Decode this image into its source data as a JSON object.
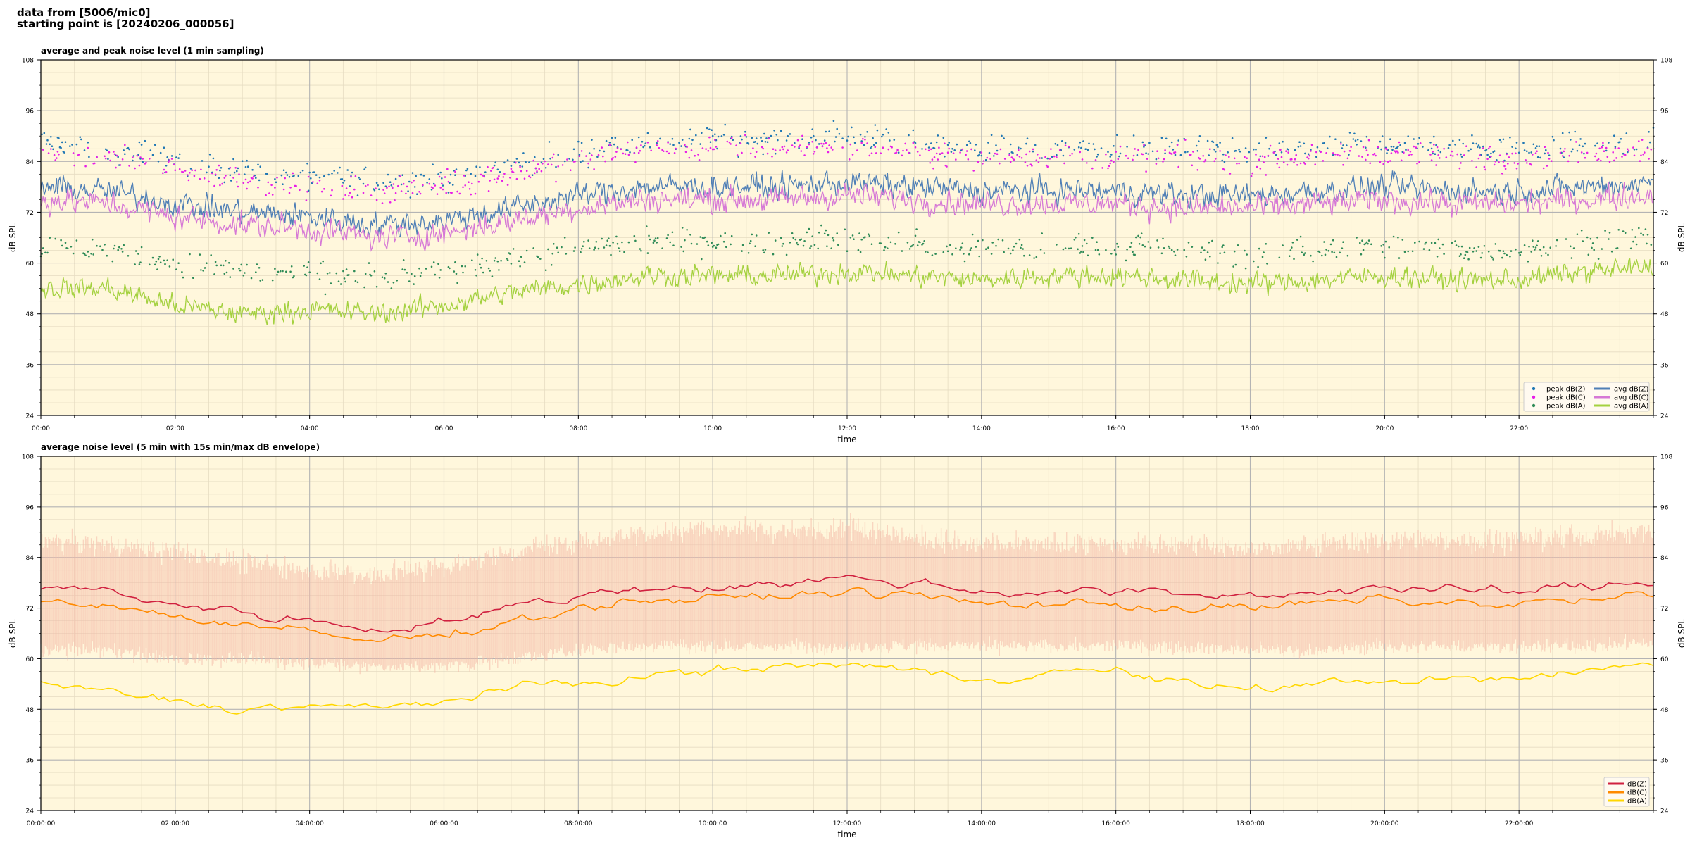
{
  "header": {
    "line1": "data from [5006/mic0]",
    "line2": "starting point is [20240206_000056]"
  },
  "colors": {
    "plot_bg": "#fff7dc",
    "peak_z": "#1f77b4",
    "peak_c": "#e81ee8",
    "peak_a": "#2e8b57",
    "avg_z": "#4f7fb6",
    "avg_c": "#d678d6",
    "avg_a": "#a4d13f",
    "dbz": "#d0203f",
    "dbc": "#ff8a00",
    "dba": "#ffd700",
    "envelope": "#f4b9a8"
  },
  "chart_data": [
    {
      "type": "line",
      "title": "average and peak noise level (1 min sampling)",
      "xlabel": "time",
      "ylabel": "dB SPL",
      "ylim": [
        24,
        108
      ],
      "xlim_hours": [
        0,
        24
      ],
      "y_ticks": [
        "24",
        "36",
        "48",
        "60",
        "72",
        "84",
        "96",
        "108"
      ],
      "x_ticks": [
        "00:00",
        "02:00",
        "04:00",
        "06:00",
        "08:00",
        "10:00",
        "12:00",
        "14:00",
        "16:00",
        "18:00",
        "20:00",
        "22:00"
      ],
      "grid": true,
      "legend_position": "bottom-right",
      "legend": [
        "peak dB(Z)",
        "peak dB(C)",
        "peak dB(A)",
        "avg dB(Z)",
        "avg dB(C)",
        "avg dB(A)"
      ],
      "x_hours": [
        0,
        1,
        2,
        3,
        4,
        5,
        6,
        7,
        8,
        9,
        10,
        11,
        12,
        13,
        14,
        15,
        16,
        17,
        18,
        19,
        20,
        21,
        22,
        23,
        24
      ],
      "series": [
        {
          "name": "avg dB(Z)",
          "kind": "line",
          "values": [
            78,
            77,
            74,
            72,
            71,
            69,
            70,
            73,
            76,
            78,
            78,
            78,
            79,
            78,
            77,
            77,
            77,
            76,
            76,
            77,
            78,
            77,
            77,
            78,
            79
          ]
        },
        {
          "name": "avg dB(C)",
          "kind": "line",
          "values": [
            75,
            74,
            71,
            69,
            68,
            66,
            67,
            70,
            73,
            75,
            75,
            75,
            76,
            75,
            74,
            74,
            74,
            73,
            73,
            74,
            75,
            74,
            74,
            75,
            76
          ]
        },
        {
          "name": "avg dB(A)",
          "kind": "line",
          "values": [
            54,
            54,
            50,
            48,
            49,
            48,
            50,
            53,
            55,
            57,
            57,
            57,
            58,
            57,
            56,
            57,
            57,
            56,
            55,
            56,
            57,
            56,
            56,
            58,
            59
          ]
        },
        {
          "name": "peak dB(Z)",
          "kind": "scatter",
          "values": [
            88,
            87,
            84,
            82,
            80,
            79,
            80,
            83,
            86,
            89,
            89,
            89,
            90,
            88,
            87,
            87,
            87,
            87,
            86,
            87,
            88,
            87,
            87,
            88,
            89
          ]
        },
        {
          "name": "peak dB(C)",
          "kind": "scatter",
          "values": [
            86,
            85,
            82,
            80,
            78,
            77,
            78,
            81,
            84,
            87,
            87,
            87,
            88,
            86,
            85,
            85,
            85,
            85,
            84,
            85,
            86,
            85,
            85,
            86,
            87
          ]
        },
        {
          "name": "peak dB(A)",
          "kind": "scatter",
          "values": [
            64,
            63,
            60,
            58,
            57,
            56,
            58,
            61,
            63,
            65,
            65,
            65,
            66,
            64,
            63,
            64,
            64,
            63,
            62,
            63,
            64,
            63,
            63,
            65,
            66
          ]
        }
      ]
    },
    {
      "type": "line",
      "title": "average noise level (5 min with 15s min/max dB envelope)",
      "xlabel": "time",
      "ylabel": "dB SPL",
      "ylim": [
        24,
        108
      ],
      "xlim_hours": [
        0,
        24
      ],
      "y_ticks": [
        "24",
        "36",
        "48",
        "60",
        "72",
        "84",
        "96",
        "108"
      ],
      "x_ticks": [
        "00:00:00",
        "02:00:00",
        "04:00:00",
        "06:00:00",
        "08:00:00",
        "10:00:00",
        "12:00:00",
        "14:00:00",
        "16:00:00",
        "18:00:00",
        "20:00:00",
        "22:00:00"
      ],
      "grid": true,
      "legend_position": "bottom-right",
      "legend": [
        "dB(Z)",
        "dB(C)",
        "dB(A)"
      ],
      "x_hours": [
        0,
        1,
        2,
        3,
        4,
        5,
        6,
        7,
        8,
        9,
        10,
        11,
        12,
        13,
        14,
        15,
        16,
        17,
        18,
        19,
        20,
        21,
        22,
        23,
        24
      ],
      "envelope_min": [
        62,
        62,
        60,
        60,
        59,
        58,
        58,
        60,
        62,
        63,
        63,
        63,
        63,
        63,
        63,
        63,
        63,
        63,
        62,
        62,
        63,
        63,
        63,
        63,
        64
      ],
      "envelope_max": [
        88,
        87,
        85,
        83,
        81,
        80,
        82,
        85,
        88,
        90,
        91,
        90,
        91,
        89,
        87,
        87,
        87,
        87,
        86,
        87,
        88,
        88,
        88,
        89,
        90
      ],
      "series": [
        {
          "name": "dB(Z)",
          "values": [
            77,
            76,
            73,
            71,
            69,
            67,
            69,
            72,
            75,
            77,
            77,
            78,
            79,
            78,
            76,
            76,
            76,
            75,
            75,
            76,
            77,
            76,
            76,
            77,
            78
          ]
        },
        {
          "name": "dB(C)",
          "values": [
            74,
            73,
            70,
            68,
            66,
            64,
            66,
            69,
            72,
            74,
            74,
            75,
            76,
            75,
            73,
            73,
            73,
            72,
            72,
            73,
            74,
            73,
            73,
            74,
            75
          ]
        },
        {
          "name": "dB(A)",
          "values": [
            54,
            52,
            50,
            48,
            49,
            48,
            50,
            53,
            54,
            56,
            57,
            58,
            59,
            57,
            55,
            57,
            57,
            54,
            53,
            54,
            55,
            55,
            55,
            57,
            59
          ]
        }
      ]
    }
  ]
}
